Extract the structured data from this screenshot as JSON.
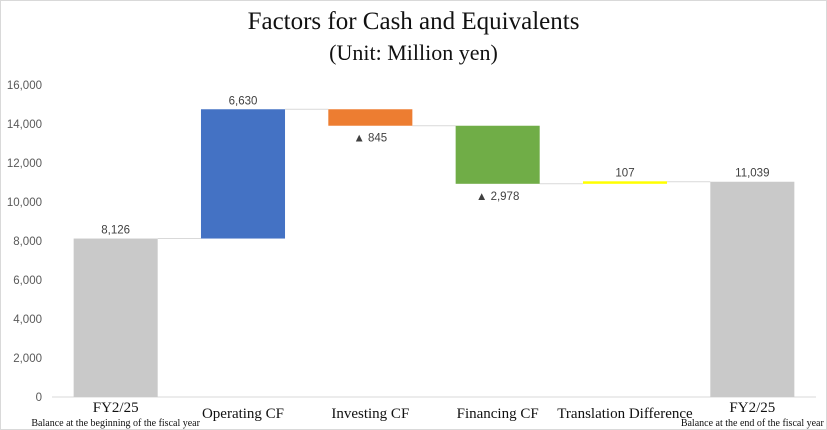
{
  "chart_data": {
    "type": "bar",
    "subtype": "waterfall",
    "title": "Factors for Cash and Equivalents",
    "subtitle": "(Unit: Million yen)",
    "ylim": [
      0,
      16000
    ],
    "yticks": [
      "0",
      "2,000",
      "4,000",
      "6,000",
      "8,000",
      "10,000",
      "12,000",
      "14,000",
      "16,000"
    ],
    "ytick_values": [
      0,
      2000,
      4000,
      6000,
      8000,
      10000,
      12000,
      14000,
      16000
    ],
    "grid": false,
    "decrease_marker": "▲",
    "categories": [
      {
        "main": "FY2/25",
        "sub": "Balance at the beginning of the fiscal year",
        "kind": "total",
        "value": 8126,
        "label": "8,126",
        "color": "#c9c9c9"
      },
      {
        "main": "Operating CF",
        "sub": "",
        "kind": "increase",
        "value": 6630,
        "label": "6,630",
        "color": "#4472c4"
      },
      {
        "main": "Investing CF",
        "sub": "",
        "kind": "decrease",
        "value": -845,
        "label": "845",
        "color": "#ed7d31"
      },
      {
        "main": "Financing CF",
        "sub": "",
        "kind": "decrease",
        "value": -2978,
        "label": "2,978",
        "color": "#70ad47"
      },
      {
        "main": "Translation Difference",
        "sub": "",
        "kind": "increase",
        "value": 107,
        "label": "107",
        "color": "#ffff00"
      },
      {
        "main": "FY2/25",
        "sub": "Balance at the end of the fiscal year",
        "kind": "total",
        "value": 11039,
        "label": "11,039",
        "color": "#c9c9c9"
      }
    ]
  }
}
